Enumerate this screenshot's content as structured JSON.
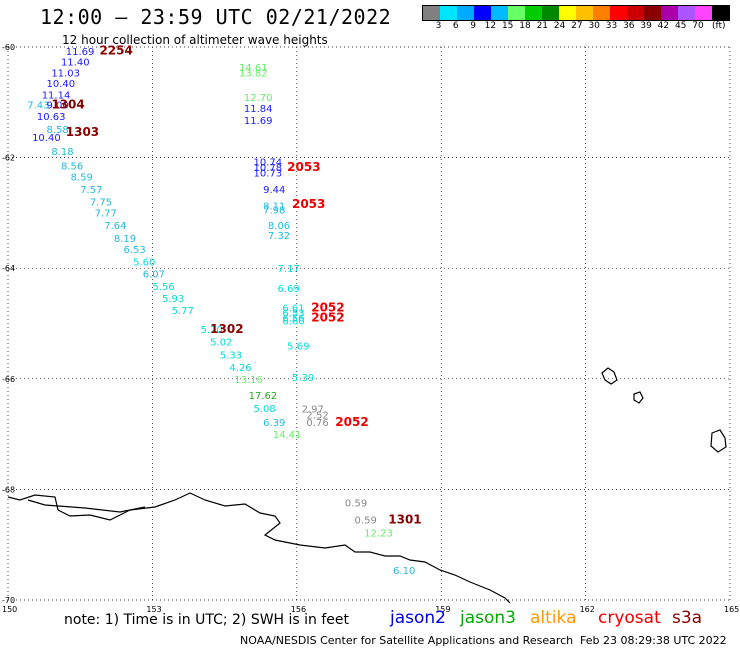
{
  "header": {
    "title": "12:00 — 23:59 UTC 02/21/2022",
    "subtitle": "12 hour collection of altimeter wave heights"
  },
  "legend": {
    "colors": [
      "#808080",
      "#00e5ff",
      "#00aaff",
      "#0000ff",
      "#00bbff",
      "#66ff66",
      "#00cc00",
      "#008800",
      "#ffff00",
      "#ffc000",
      "#ff8000",
      "#ff0000",
      "#cc0000",
      "#880000",
      "#aa00aa",
      "#aa55ff",
      "#ff44ff",
      "#000000"
    ],
    "labels": [
      "3",
      "6",
      "9",
      "12",
      "15",
      "18",
      "21",
      "24",
      "27",
      "30",
      "33",
      "36",
      "39",
      "42",
      "45",
      "70"
    ],
    "unit": "(ft)"
  },
  "axes": {
    "lat_labels": [
      "-60",
      "-62",
      "-64",
      "-66",
      "-68",
      "-70"
    ],
    "lon_labels": [
      "150",
      "153",
      "156",
      "159",
      "162",
      "165"
    ],
    "lat_range": [
      -70,
      -60
    ],
    "lon_range": [
      150,
      165
    ]
  },
  "footer": {
    "note": "note: 1) Time is in UTC; 2) SWH is in feet",
    "missions": [
      {
        "name": "jason2",
        "color": "#0000dd"
      },
      {
        "name": "jason3",
        "color": "#00aa00"
      },
      {
        "name": "altika",
        "color": "#ff9900"
      },
      {
        "name": "cryosat",
        "color": "#ee0000"
      },
      {
        "name": "s3a",
        "color": "#880000"
      }
    ],
    "credit": "NOAA/NESDIS Center for Satellite Applications and Research",
    "timestamp": "Feb 23 08:29:38 UTC 2022"
  },
  "map_data": {
    "wave_heights": [
      {
        "value": "11.69",
        "lon": 151.2,
        "lat": -60.07,
        "color": "#1a1aff"
      },
      {
        "value": "11.40",
        "lon": 151.1,
        "lat": -60.26,
        "color": "#1a1aff"
      },
      {
        "value": "11.03",
        "lon": 150.9,
        "lat": -60.46,
        "color": "#1a1aff"
      },
      {
        "value": "10.40",
        "lon": 150.8,
        "lat": -60.65,
        "color": "#1a1aff"
      },
      {
        "value": "11.14",
        "lon": 150.7,
        "lat": -60.86,
        "color": "#1a1aff"
      },
      {
        "value": "7.43",
        "lon": 150.4,
        "lat": -61.04,
        "color": "#22bbdd"
      },
      {
        "value": "9.00",
        "lon": 150.8,
        "lat": -61.04,
        "color": "#1a1aff"
      },
      {
        "value": "10.63",
        "lon": 150.6,
        "lat": -61.25,
        "color": "#1a1aff"
      },
      {
        "value": "8.58",
        "lon": 150.8,
        "lat": -61.48,
        "color": "#22bbdd"
      },
      {
        "value": "10.40",
        "lon": 150.5,
        "lat": -61.63,
        "color": "#1a1aff"
      },
      {
        "value": "8.18",
        "lon": 150.9,
        "lat": -61.88,
        "color": "#22bbdd"
      },
      {
        "value": "8.56",
        "lon": 151.1,
        "lat": -62.14,
        "color": "#22bbdd"
      },
      {
        "value": "8.59",
        "lon": 151.3,
        "lat": -62.34,
        "color": "#22bbdd"
      },
      {
        "value": "7.57",
        "lon": 151.5,
        "lat": -62.57,
        "color": "#22bbdd"
      },
      {
        "value": "7.75",
        "lon": 151.7,
        "lat": -62.79,
        "color": "#22bbdd"
      },
      {
        "value": "7.77",
        "lon": 151.8,
        "lat": -62.99,
        "color": "#22bbdd"
      },
      {
        "value": "7.64",
        "lon": 152.0,
        "lat": -63.22,
        "color": "#22bbdd"
      },
      {
        "value": "8.19",
        "lon": 152.2,
        "lat": -63.45,
        "color": "#22bbdd"
      },
      {
        "value": "6.53",
        "lon": 152.4,
        "lat": -63.65,
        "color": "#22bbdd"
      },
      {
        "value": "5.60",
        "lon": 152.6,
        "lat": -63.88,
        "color": "#00dddd"
      },
      {
        "value": "6.07",
        "lon": 152.8,
        "lat": -64.1,
        "color": "#22bbdd"
      },
      {
        "value": "5.56",
        "lon": 153.0,
        "lat": -64.32,
        "color": "#00dddd"
      },
      {
        "value": "5.93",
        "lon": 153.2,
        "lat": -64.54,
        "color": "#00dddd"
      },
      {
        "value": "5.77",
        "lon": 153.4,
        "lat": -64.76,
        "color": "#00dddd"
      },
      {
        "value": "5.20",
        "lon": 154.0,
        "lat": -65.1,
        "color": "#00dddd"
      },
      {
        "value": "5.02",
        "lon": 154.2,
        "lat": -65.33,
        "color": "#00dddd"
      },
      {
        "value": "5.33",
        "lon": 154.4,
        "lat": -65.56,
        "color": "#00dddd"
      },
      {
        "value": "4.26",
        "lon": 154.6,
        "lat": -65.79,
        "color": "#00dddd"
      },
      {
        "value": "13.16",
        "lon": 154.7,
        "lat": -66.0,
        "color": "#66ee66"
      },
      {
        "value": "17.62",
        "lon": 155.0,
        "lat": -66.29,
        "color": "#22aa22"
      },
      {
        "value": "5.08",
        "lon": 155.1,
        "lat": -66.53,
        "color": "#00dddd"
      },
      {
        "value": "6.39",
        "lon": 155.3,
        "lat": -66.78,
        "color": "#22bbdd"
      },
      {
        "value": "14.41",
        "lon": 155.5,
        "lat": -67.0,
        "color": "#66ee66"
      },
      {
        "value": "14.61",
        "lon": 154.8,
        "lat": -60.36,
        "color": "#66ee66"
      },
      {
        "value": "13.82",
        "lon": 154.8,
        "lat": -60.46,
        "color": "#66ee66"
      },
      {
        "value": "12.70",
        "lon": 154.9,
        "lat": -60.9,
        "color": "#66ee66"
      },
      {
        "value": "11.84",
        "lon": 154.9,
        "lat": -61.1,
        "color": "#1a1aff"
      },
      {
        "value": "11.69",
        "lon": 154.9,
        "lat": -61.32,
        "color": "#1a1aff"
      },
      {
        "value": "10.74",
        "lon": 155.1,
        "lat": -62.07,
        "color": "#1a1aff"
      },
      {
        "value": "10.78",
        "lon": 155.1,
        "lat": -62.17,
        "color": "#1a1aff"
      },
      {
        "value": "10.73",
        "lon": 155.1,
        "lat": -62.27,
        "color": "#1a1aff"
      },
      {
        "value": "9.44",
        "lon": 155.3,
        "lat": -62.57,
        "color": "#1a1aff"
      },
      {
        "value": "8.11",
        "lon": 155.3,
        "lat": -62.87,
        "color": "#22bbdd"
      },
      {
        "value": "7.98",
        "lon": 155.3,
        "lat": -62.94,
        "color": "#22bbdd"
      },
      {
        "value": "8.06",
        "lon": 155.4,
        "lat": -63.22,
        "color": "#22bbdd"
      },
      {
        "value": "7.32",
        "lon": 155.4,
        "lat": -63.4,
        "color": "#22bbdd"
      },
      {
        "value": "7.17",
        "lon": 155.6,
        "lat": -64.0,
        "color": "#00dddd"
      },
      {
        "value": "6.69",
        "lon": 155.6,
        "lat": -64.36,
        "color": "#00dddd"
      },
      {
        "value": "6.61",
        "lon": 155.7,
        "lat": -64.71,
        "color": "#00dddd"
      },
      {
        "value": "6.53",
        "lon": 155.7,
        "lat": -64.8,
        "color": "#00dddd"
      },
      {
        "value": "6.56",
        "lon": 155.7,
        "lat": -64.89,
        "color": "#00dddd"
      },
      {
        "value": "6.60",
        "lon": 155.7,
        "lat": -64.95,
        "color": "#00dddd"
      },
      {
        "value": "5.69",
        "lon": 155.8,
        "lat": -65.4,
        "color": "#00dddd"
      },
      {
        "value": "5.39",
        "lon": 155.9,
        "lat": -65.97,
        "color": "#00dddd"
      },
      {
        "value": "2.97",
        "lon": 156.1,
        "lat": -66.54,
        "color": "#888888"
      },
      {
        "value": "2.52",
        "lon": 156.2,
        "lat": -66.65,
        "color": "#888888"
      },
      {
        "value": "0.76",
        "lon": 156.2,
        "lat": -66.78,
        "color": "#888888"
      },
      {
        "value": "0.59",
        "lon": 157.0,
        "lat": -68.24,
        "color": "#888888"
      },
      {
        "value": "0.59",
        "lon": 157.2,
        "lat": -68.54,
        "color": "#888888"
      },
      {
        "value": "12.23",
        "lon": 157.4,
        "lat": -68.78,
        "color": "#66ee66"
      },
      {
        "value": "6.10",
        "lon": 158.0,
        "lat": -69.46,
        "color": "#22bbdd"
      }
    ],
    "time_labels": [
      {
        "value": "2254",
        "lon": 151.9,
        "lat": -60.06,
        "color": "#880000"
      },
      {
        "value": "1304",
        "lon": 150.9,
        "lat": -61.04,
        "color": "#880000"
      },
      {
        "value": "1303",
        "lon": 151.2,
        "lat": -61.54,
        "color": "#880000"
      },
      {
        "value": "2053",
        "lon": 155.8,
        "lat": -62.17,
        "color": "#ee0000"
      },
      {
        "value": "2053",
        "lon": 155.9,
        "lat": -62.84,
        "color": "#ee0000"
      },
      {
        "value": "2052",
        "lon": 156.3,
        "lat": -64.71,
        "color": "#ee0000"
      },
      {
        "value": "2052",
        "lon": 156.3,
        "lat": -64.89,
        "color": "#ee0000"
      },
      {
        "value": "1302",
        "lon": 154.2,
        "lat": -65.1,
        "color": "#880000"
      },
      {
        "value": "2052",
        "lon": 156.8,
        "lat": -66.78,
        "color": "#ee0000"
      },
      {
        "value": "1301",
        "lon": 157.9,
        "lat": -68.54,
        "color": "#880000"
      }
    ]
  }
}
